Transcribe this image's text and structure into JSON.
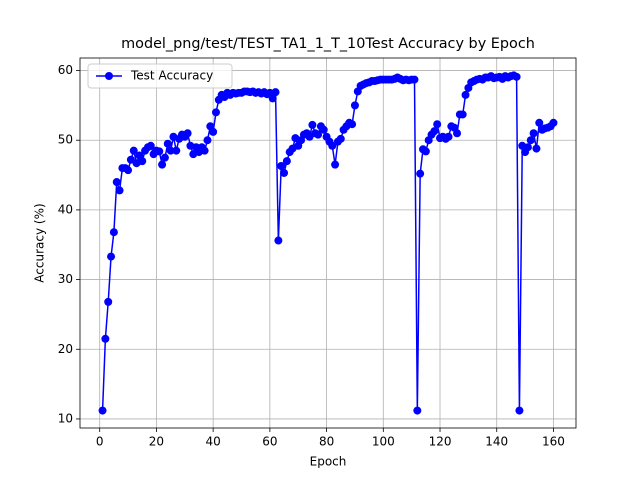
{
  "chart_data": {
    "type": "line",
    "title": "model_png/test/TEST_TA1_1_T_10Test Accuracy by Epoch",
    "x_label": "Epoch",
    "y_label": "Accuracy (%)",
    "x": [
      1,
      2,
      3,
      4,
      5,
      6,
      7,
      8,
      9,
      10,
      11,
      12,
      13,
      14,
      15,
      16,
      17,
      18,
      19,
      20,
      21,
      22,
      23,
      24,
      25,
      26,
      27,
      28,
      29,
      30,
      31,
      32,
      33,
      34,
      35,
      36,
      37,
      38,
      39,
      40,
      41,
      42,
      43,
      44,
      45,
      46,
      47,
      48,
      49,
      50,
      51,
      52,
      53,
      54,
      55,
      56,
      57,
      58,
      59,
      60,
      61,
      62,
      63,
      64,
      65,
      66,
      67,
      68,
      69,
      70,
      71,
      72,
      73,
      74,
      75,
      76,
      77,
      78,
      79,
      80,
      81,
      82,
      83,
      84,
      85,
      86,
      87,
      88,
      89,
      90,
      91,
      92,
      93,
      94,
      95,
      96,
      97,
      98,
      99,
      100,
      101,
      102,
      103,
      104,
      105,
      106,
      107,
      108,
      109,
      110,
      111,
      112,
      113,
      114,
      115,
      116,
      117,
      118,
      119,
      120,
      121,
      122,
      123,
      124,
      125,
      126,
      127,
      128,
      129,
      130,
      131,
      132,
      133,
      134,
      135,
      136,
      137,
      138,
      139,
      140,
      141,
      142,
      143,
      144,
      145,
      146,
      147,
      148,
      149,
      150,
      151,
      152,
      153,
      154,
      155,
      156,
      157,
      158,
      159,
      160
    ],
    "series": [
      {
        "name": "Test Accuracy",
        "color": "#0000ff",
        "values": [
          11.2,
          21.5,
          26.8,
          33.3,
          36.8,
          44.0,
          42.8,
          46.0,
          46.0,
          45.7,
          47.2,
          48.5,
          46.7,
          47.8,
          47.0,
          48.5,
          49.0,
          49.2,
          48.0,
          48.5,
          48.4,
          46.5,
          47.5,
          49.5,
          48.5,
          50.5,
          48.5,
          50.2,
          50.8,
          50.5,
          51.0,
          49.2,
          48.0,
          49.0,
          48.3,
          49.0,
          48.5,
          50.0,
          52.0,
          51.2,
          54.0,
          55.8,
          56.5,
          56.2,
          56.8,
          56.5,
          56.8,
          56.7,
          56.8,
          56.8,
          57.0,
          57.0,
          56.9,
          57.0,
          56.8,
          56.9,
          56.7,
          56.9,
          56.6,
          56.8,
          56.0,
          56.9,
          35.6,
          46.3,
          45.3,
          47.0,
          48.3,
          48.8,
          50.3,
          49.2,
          50.0,
          50.8,
          51.0,
          50.5,
          52.2,
          51.0,
          50.8,
          52.0,
          51.5,
          50.5,
          49.8,
          49.2,
          46.5,
          49.8,
          50.2,
          51.5,
          52.0,
          52.5,
          52.3,
          55.0,
          57.0,
          57.8,
          58.0,
          58.2,
          58.3,
          58.5,
          58.5,
          58.6,
          58.7,
          58.7,
          58.7,
          58.7,
          58.7,
          58.8,
          59.0,
          58.8,
          58.6,
          58.7,
          58.6,
          58.7,
          58.7,
          11.2,
          45.2,
          48.7,
          48.4,
          50.0,
          50.8,
          51.3,
          52.3,
          50.3,
          50.5,
          50.2,
          50.5,
          52.0,
          51.8,
          51.0,
          53.7,
          53.7,
          56.5,
          57.5,
          58.3,
          58.5,
          58.7,
          58.8,
          58.7,
          59.0,
          59.0,
          59.2,
          58.9,
          59.0,
          59.1,
          58.8,
          59.2,
          59.0,
          59.2,
          59.3,
          59.1,
          11.2,
          49.2,
          48.3,
          49.0,
          50.0,
          51.0,
          48.8,
          52.5,
          51.5,
          51.7,
          51.8,
          52.0,
          52.5
        ]
      }
    ],
    "xlim": [
      -6.95,
      167.95
    ],
    "xticks": [
      0,
      20,
      40,
      60,
      80,
      100,
      120,
      140,
      160
    ],
    "ylim": [
      8.7,
      61.8
    ],
    "yticks": [
      10,
      20,
      30,
      40,
      50,
      60
    ],
    "grid": true,
    "legend": "upper left"
  }
}
